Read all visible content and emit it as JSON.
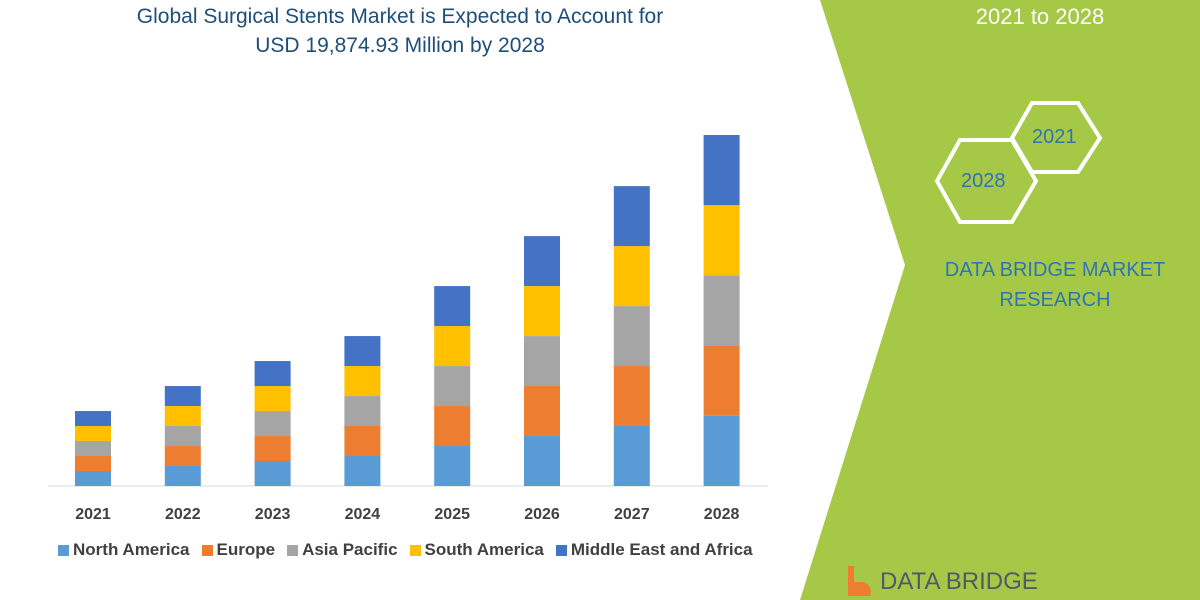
{
  "title_line1": "Global Surgical Stents Market is Expected to Account for",
  "title_line2": "USD 19,874.93 Million by 2028",
  "side_panel": {
    "period": "2021 to 2028",
    "hex_start": "2021",
    "hex_end": "2028",
    "brand": "DATA BRIDGE MARKET RESEARCH",
    "logo": "DATA BRIDGE",
    "color": "#a5c846"
  },
  "chart_data": {
    "type": "bar",
    "stacked": true,
    "categories": [
      "2021",
      "2022",
      "2023",
      "2024",
      "2025",
      "2026",
      "2027",
      "2028"
    ],
    "series": [
      {
        "name": "North America",
        "color": "#5b9bd5",
        "values": [
          849,
          1132,
          1415,
          1698,
          2264,
          2830,
          3396,
          3975
        ]
      },
      {
        "name": "Europe",
        "color": "#ed7d31",
        "values": [
          849,
          1132,
          1415,
          1698,
          2264,
          2830,
          3396,
          3975
        ]
      },
      {
        "name": "Asia Pacific",
        "color": "#a5a5a5",
        "values": [
          849,
          1132,
          1415,
          1698,
          2264,
          2830,
          3396,
          3975
        ]
      },
      {
        "name": "South America",
        "color": "#ffc000",
        "values": [
          849,
          1132,
          1415,
          1698,
          2264,
          2830,
          3396,
          3975
        ]
      },
      {
        "name": "Middle East and Africa",
        "color": "#4472c4",
        "values": [
          849,
          1132,
          1415,
          1698,
          2264,
          2830,
          3396,
          3975
        ]
      }
    ],
    "ylim": [
      0,
      20000
    ],
    "grid": false,
    "legend": "bottom"
  }
}
